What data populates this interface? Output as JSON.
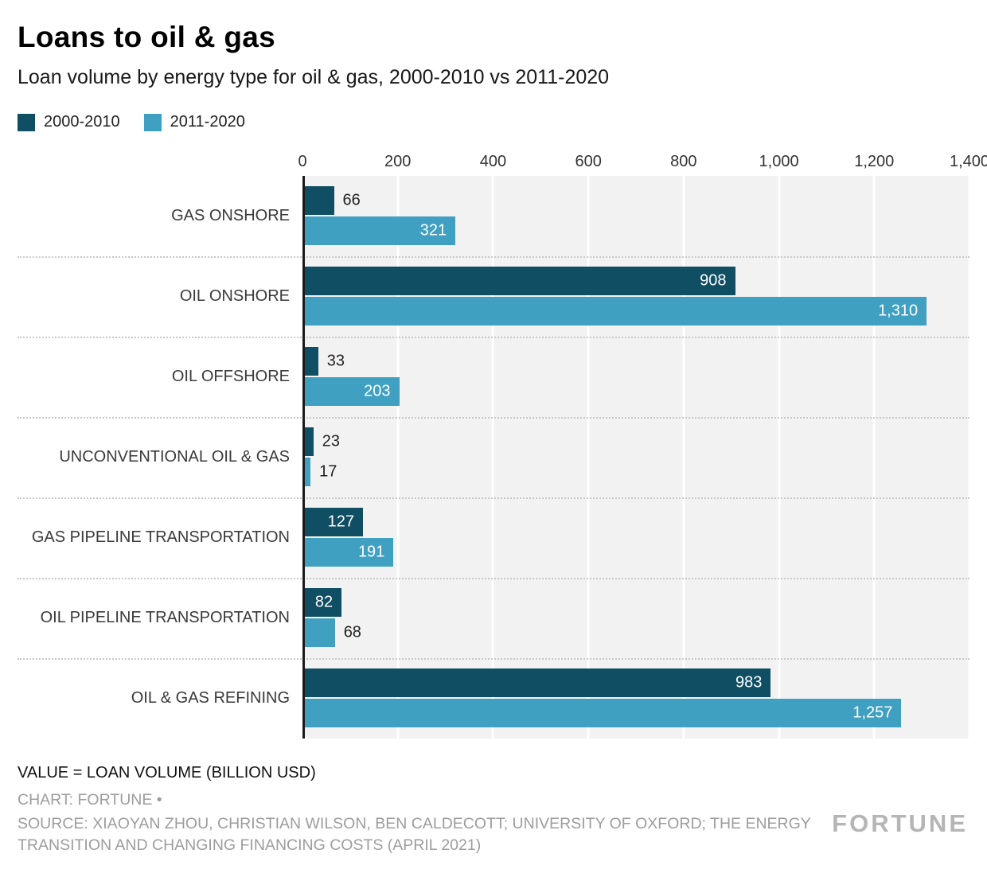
{
  "title": "Loans to oil & gas",
  "subtitle": "Loan volume by energy type for oil & gas, 2000-2010 vs 2011-2020",
  "legend": [
    {
      "label": "2000-2010",
      "color": "#0f4e63"
    },
    {
      "label": "2011-2020",
      "color": "#3fa0c1"
    }
  ],
  "chart_data": {
    "type": "bar",
    "orientation": "horizontal",
    "title": "Loans to oil & gas",
    "subtitle": "Loan volume by energy type for oil & gas, 2000-2010 vs 2011-2020",
    "categories": [
      "GAS ONSHORE",
      "OIL ONSHORE",
      "OIL OFFSHORE",
      "UNCONVENTIONAL OIL & GAS",
      "GAS PIPELINE TRANSPORTATION",
      "OIL PIPELINE TRANSPORTATION",
      "OIL & GAS REFINING"
    ],
    "series": [
      {
        "name": "2000-2010",
        "color": "#0f4e63",
        "values": [
          66,
          908,
          33,
          23,
          127,
          82,
          983
        ]
      },
      {
        "name": "2011-2020",
        "color": "#3fa0c1",
        "values": [
          321,
          1310,
          203,
          17,
          191,
          68,
          1257
        ]
      }
    ],
    "xlim": [
      0,
      1400
    ],
    "xticks": [
      0,
      200,
      400,
      600,
      800,
      1000,
      1200,
      1400
    ],
    "xtick_labels": [
      "0",
      "200",
      "400",
      "600",
      "800",
      "1,000",
      "1,200",
      "1,400"
    ],
    "grid": true,
    "legend_position": "top",
    "value_unit": "BILLION USD"
  },
  "footer": {
    "note": "VALUE = LOAN VOLUME (BILLION USD)",
    "credit": "CHART: FORTUNE •",
    "source": "SOURCE: XIAOYAN ZHOU, CHRISTIAN WILSON, BEN CALDECOTT; UNIVERSITY OF OXFORD; THE ENERGY TRANSITION AND CHANGING FINANCING COSTS (APRIL 2021)",
    "logo": "FORTUNE"
  }
}
